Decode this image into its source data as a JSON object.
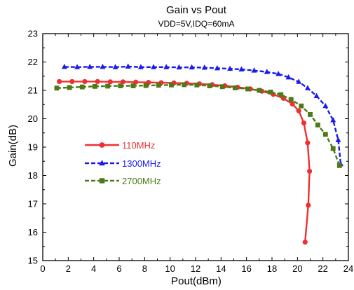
{
  "chart_data": {
    "type": "line",
    "title": "Gain vs Pout",
    "subtitle": "VDD=5V,IDQ=60mA",
    "xlabel": "Pout(dBm)",
    "ylabel": "Gain(dB)",
    "xlim": [
      0,
      24
    ],
    "ylim": [
      15,
      23
    ],
    "xticks": [
      "0",
      "2",
      "4",
      "6",
      "8",
      "10",
      "12",
      "14",
      "16",
      "18",
      "20",
      "22",
      "24"
    ],
    "yticks": [
      "15",
      "16",
      "17",
      "18",
      "19",
      "20",
      "21",
      "22",
      "23"
    ],
    "grid": false,
    "legend_position": "left-center",
    "series": [
      {
        "name": "110MHz",
        "color": "#ee3030",
        "marker": "circle",
        "line_style": "solid",
        "points": [
          [
            1.3,
            21.31
          ],
          [
            2.3,
            21.31
          ],
          [
            3.3,
            21.31
          ],
          [
            4.3,
            21.31
          ],
          [
            5.3,
            21.3
          ],
          [
            6.3,
            21.3
          ],
          [
            7.3,
            21.29
          ],
          [
            8.3,
            21.28
          ],
          [
            9.3,
            21.27
          ],
          [
            10.3,
            21.26
          ],
          [
            11.3,
            21.25
          ],
          [
            12.3,
            21.23
          ],
          [
            13.3,
            21.2
          ],
          [
            14.3,
            21.16
          ],
          [
            15.3,
            21.11
          ],
          [
            16.3,
            21.05
          ],
          [
            17.2,
            20.97
          ],
          [
            18.1,
            20.86
          ],
          [
            18.9,
            20.72
          ],
          [
            19.6,
            20.52
          ],
          [
            20.1,
            20.28
          ],
          [
            20.5,
            19.85
          ],
          [
            20.8,
            19.15
          ],
          [
            20.95,
            18.15
          ],
          [
            20.85,
            16.95
          ],
          [
            20.6,
            15.65
          ]
        ]
      },
      {
        "name": "1300MHz",
        "color": "#1a1aee",
        "marker": "triangle",
        "line_style": "dashed",
        "points": [
          [
            1.7,
            21.83
          ],
          [
            2.7,
            21.82
          ],
          [
            3.7,
            21.83
          ],
          [
            4.7,
            21.83
          ],
          [
            5.7,
            21.82
          ],
          [
            6.7,
            21.84
          ],
          [
            7.7,
            21.82
          ],
          [
            8.7,
            21.82
          ],
          [
            9.7,
            21.82
          ],
          [
            10.7,
            21.81
          ],
          [
            11.7,
            21.81
          ],
          [
            12.7,
            21.8
          ],
          [
            13.7,
            21.78
          ],
          [
            14.7,
            21.76
          ],
          [
            15.6,
            21.74
          ],
          [
            16.6,
            21.7
          ],
          [
            17.6,
            21.65
          ],
          [
            18.5,
            21.58
          ],
          [
            19.3,
            21.46
          ],
          [
            20.1,
            21.3
          ],
          [
            20.8,
            21.08
          ],
          [
            21.5,
            20.8
          ],
          [
            22.2,
            20.45
          ],
          [
            22.8,
            19.95
          ],
          [
            23.2,
            19.25
          ],
          [
            23.4,
            18.4
          ]
        ]
      },
      {
        "name": "2700MHz",
        "color": "#4c7a16",
        "marker": "square",
        "line_style": "dashed",
        "points": [
          [
            1.1,
            21.08
          ],
          [
            2.1,
            21.1
          ],
          [
            3.1,
            21.12
          ],
          [
            4.1,
            21.14
          ],
          [
            5.1,
            21.15
          ],
          [
            6.1,
            21.16
          ],
          [
            7.1,
            21.16
          ],
          [
            8.1,
            21.17
          ],
          [
            9.1,
            21.18
          ],
          [
            10.1,
            21.19
          ],
          [
            11.1,
            21.2
          ],
          [
            12.1,
            21.19
          ],
          [
            13.1,
            21.16
          ],
          [
            14.1,
            21.13
          ],
          [
            15.1,
            21.09
          ],
          [
            16.1,
            21.05
          ],
          [
            17.0,
            21.0
          ],
          [
            17.9,
            20.94
          ],
          [
            18.7,
            20.85
          ],
          [
            19.5,
            20.68
          ],
          [
            20.3,
            20.45
          ],
          [
            21.0,
            20.15
          ],
          [
            21.6,
            19.78
          ],
          [
            22.2,
            19.45
          ],
          [
            22.8,
            18.95
          ],
          [
            23.3,
            18.35
          ]
        ]
      }
    ]
  }
}
